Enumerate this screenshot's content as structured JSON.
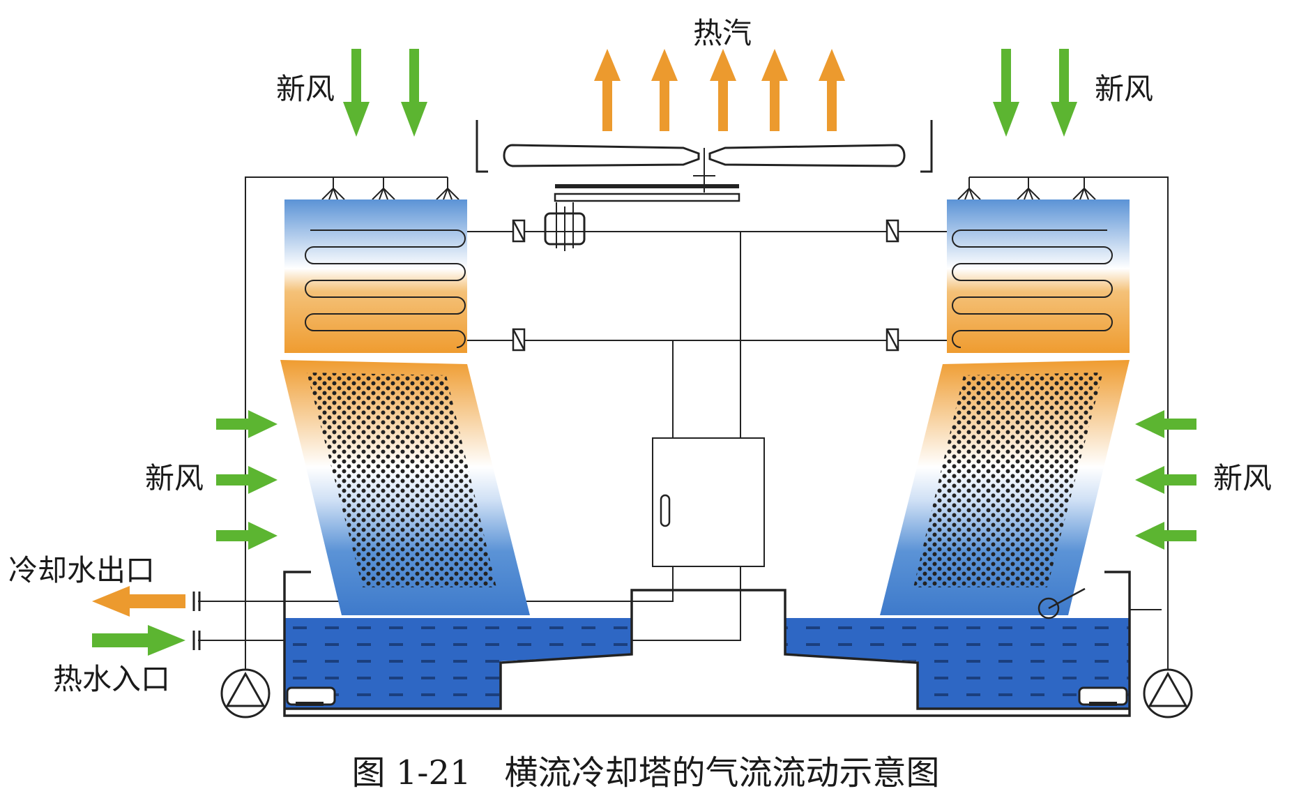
{
  "labels": {
    "hot_vapor": "热汽",
    "fresh_air_top_left": "新风",
    "fresh_air_top_right": "新风",
    "fresh_air_side_left": "新风",
    "fresh_air_side_right": "新风",
    "cooling_water_outlet": "冷却水出口",
    "hot_water_inlet": "热水入口"
  },
  "caption": "图 1-21　横流冷却塔的气流流动示意图",
  "colors": {
    "fresh_air_arrow": "#5cb531",
    "hot_air_arrow": "#ec9a2e",
    "outlet_arrow": "#ec9a2e",
    "inlet_arrow": "#5cb531",
    "water": "#2e67c4",
    "coil_blue": "#5b93d6",
    "coil_orange": "#ef9c30",
    "line": "#222222"
  },
  "icons": {
    "pump": "pump-icon",
    "fan": "fan-icon",
    "motor": "motor-icon",
    "valve": "valve-icon",
    "float_valve": "float-valve-icon"
  }
}
